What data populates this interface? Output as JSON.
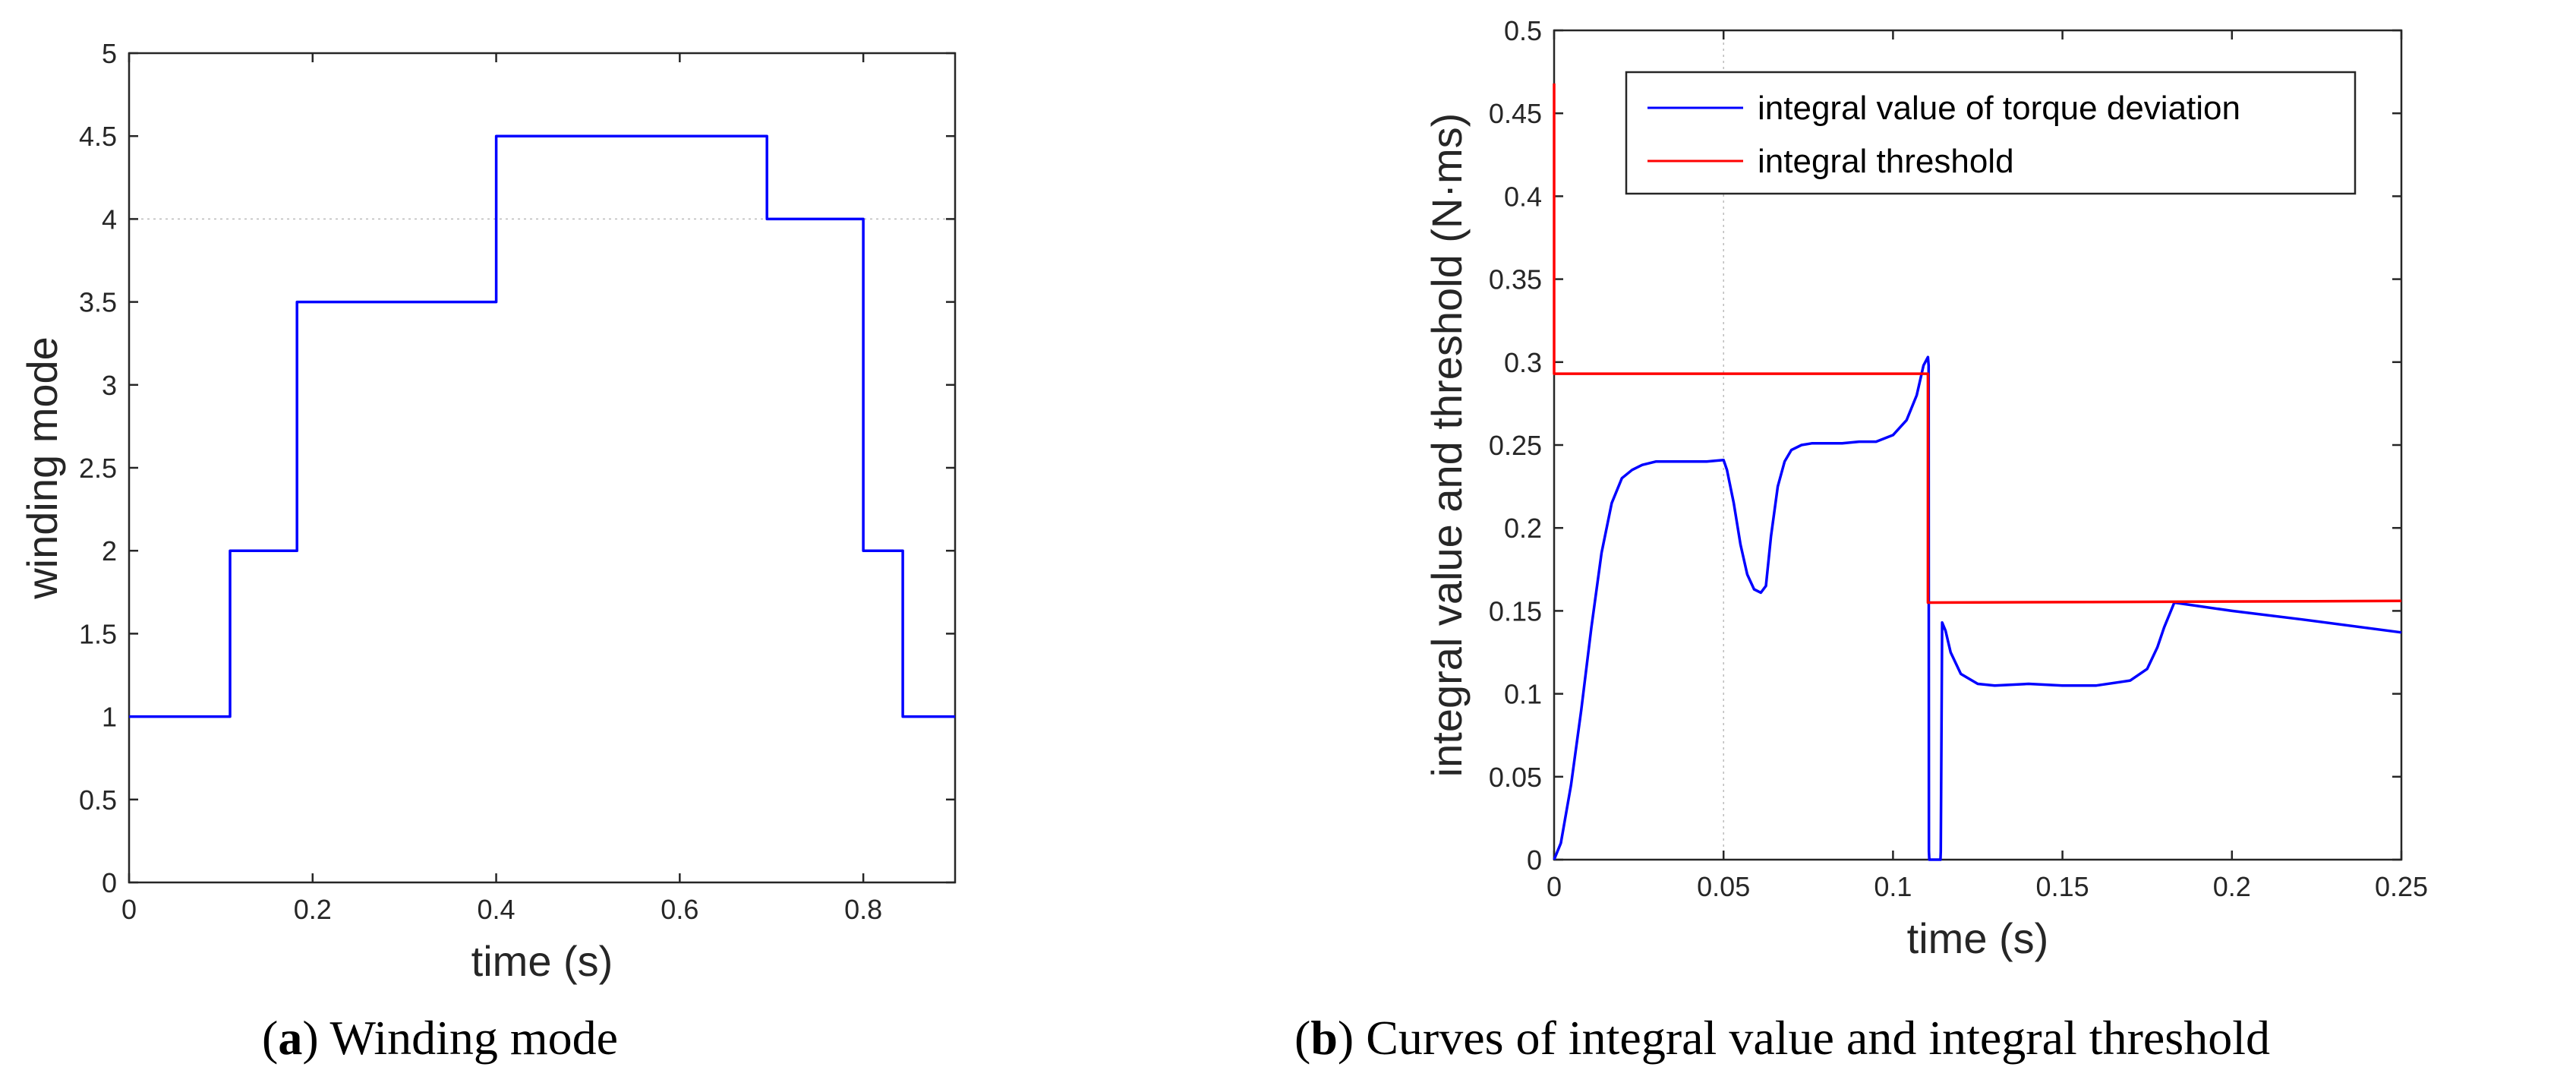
{
  "colors": {
    "series_blue": "#0000ff",
    "threshold_red": "#ff0000",
    "axis": "#262626"
  },
  "captions": {
    "a_label": "a",
    "a_text": "Winding mode",
    "b_label": "b",
    "b_text": "Curves of integral value and integral threshold"
  },
  "chart_data": [
    {
      "id": "a",
      "type": "line",
      "title": "",
      "xlabel": "time (s)",
      "ylabel": "winding mode",
      "xlim": [
        0,
        0.9
      ],
      "ylim": [
        0,
        5
      ],
      "xticks": [
        0,
        0.2,
        0.4,
        0.6,
        0.8
      ],
      "xtick_labels": [
        "0",
        "0.2",
        "0.4",
        "0.6",
        "0.8"
      ],
      "yticks": [
        0,
        0.5,
        1,
        1.5,
        2,
        2.5,
        3,
        3.5,
        4,
        4.5,
        5
      ],
      "ytick_labels": [
        "0",
        "0.5",
        "1",
        "1.5",
        "2",
        "2.5",
        "3",
        "3.5",
        "4",
        "4.5",
        "5"
      ],
      "grid": "dotted lines at y=4 only",
      "series": [
        {
          "name": "winding mode",
          "color": "#0000ff",
          "x": [
            0,
            0.11,
            0.11,
            0.183,
            0.183,
            0.4,
            0.4,
            0.695,
            0.695,
            0.8,
            0.8,
            0.843,
            0.843,
            0.9
          ],
          "y": [
            1,
            1,
            2,
            2,
            3.5,
            3.5,
            4.5,
            4.5,
            4,
            4,
            2,
            2,
            1,
            1
          ]
        }
      ]
    },
    {
      "id": "b",
      "type": "line",
      "title": "",
      "xlabel": "time (s)",
      "ylabel": "integral value and threshold (N·ms)",
      "xlim": [
        0,
        0.25
      ],
      "ylim": [
        0,
        0.5
      ],
      "xticks": [
        0,
        0.05,
        0.1,
        0.15,
        0.2,
        0.25
      ],
      "xtick_labels": [
        "0",
        "0.05",
        "0.1",
        "0.15",
        "0.2",
        "0.25"
      ],
      "yticks": [
        0,
        0.05,
        0.1,
        0.15,
        0.2,
        0.25,
        0.3,
        0.35,
        0.4,
        0.45,
        0.5
      ],
      "ytick_labels": [
        "0",
        "0.05",
        "0.1",
        "0.15",
        "0.2",
        "0.25",
        "0.3",
        "0.35",
        "0.4",
        "0.45",
        "0.5"
      ],
      "grid": "dotted vertical line at x=0.05",
      "legend": "top-right",
      "series": [
        {
          "name": "integral value of torque deviation",
          "color": "#0000ff",
          "x": [
            0,
            0.002,
            0.005,
            0.008,
            0.011,
            0.014,
            0.017,
            0.02,
            0.023,
            0.026,
            0.03,
            0.035,
            0.04,
            0.045,
            0.05,
            0.051,
            0.053,
            0.055,
            0.057,
            0.059,
            0.061,
            0.0625,
            0.064,
            0.066,
            0.068,
            0.07,
            0.073,
            0.076,
            0.08,
            0.085,
            0.09,
            0.095,
            0.1,
            0.104,
            0.107,
            0.109,
            0.1103,
            0.1105,
            0.1106,
            0.1107,
            0.1109,
            0.111,
            0.1112,
            0.114,
            0.1141,
            0.1145,
            0.1155,
            0.117,
            0.12,
            0.125,
            0.13,
            0.14,
            0.15,
            0.16,
            0.17,
            0.175,
            0.178,
            0.18,
            0.183,
            0.2,
            0.22,
            0.25
          ],
          "y": [
            0,
            0.01,
            0.045,
            0.09,
            0.14,
            0.185,
            0.215,
            0.23,
            0.235,
            0.238,
            0.24,
            0.24,
            0.24,
            0.24,
            0.241,
            0.235,
            0.215,
            0.19,
            0.172,
            0.163,
            0.161,
            0.165,
            0.195,
            0.225,
            0.24,
            0.247,
            0.25,
            0.251,
            0.251,
            0.251,
            0.252,
            0.252,
            0.256,
            0.265,
            0.28,
            0.298,
            0.303,
            0.298,
            0.005,
            0.0,
            0.0,
            0.0,
            0.0,
            0.0,
            0.005,
            0.143,
            0.138,
            0.125,
            0.112,
            0.106,
            0.105,
            0.106,
            0.105,
            0.105,
            0.108,
            0.115,
            0.128,
            0.14,
            0.155,
            0.15,
            0.145,
            0.137
          ]
        },
        {
          "name": "integral threshold",
          "color": "#ff0000",
          "x": [
            0,
            0,
            0.1103,
            0.1103,
            0.25
          ],
          "y": [
            0.468,
            0.293,
            0.293,
            0.155,
            0.156
          ]
        }
      ]
    }
  ]
}
